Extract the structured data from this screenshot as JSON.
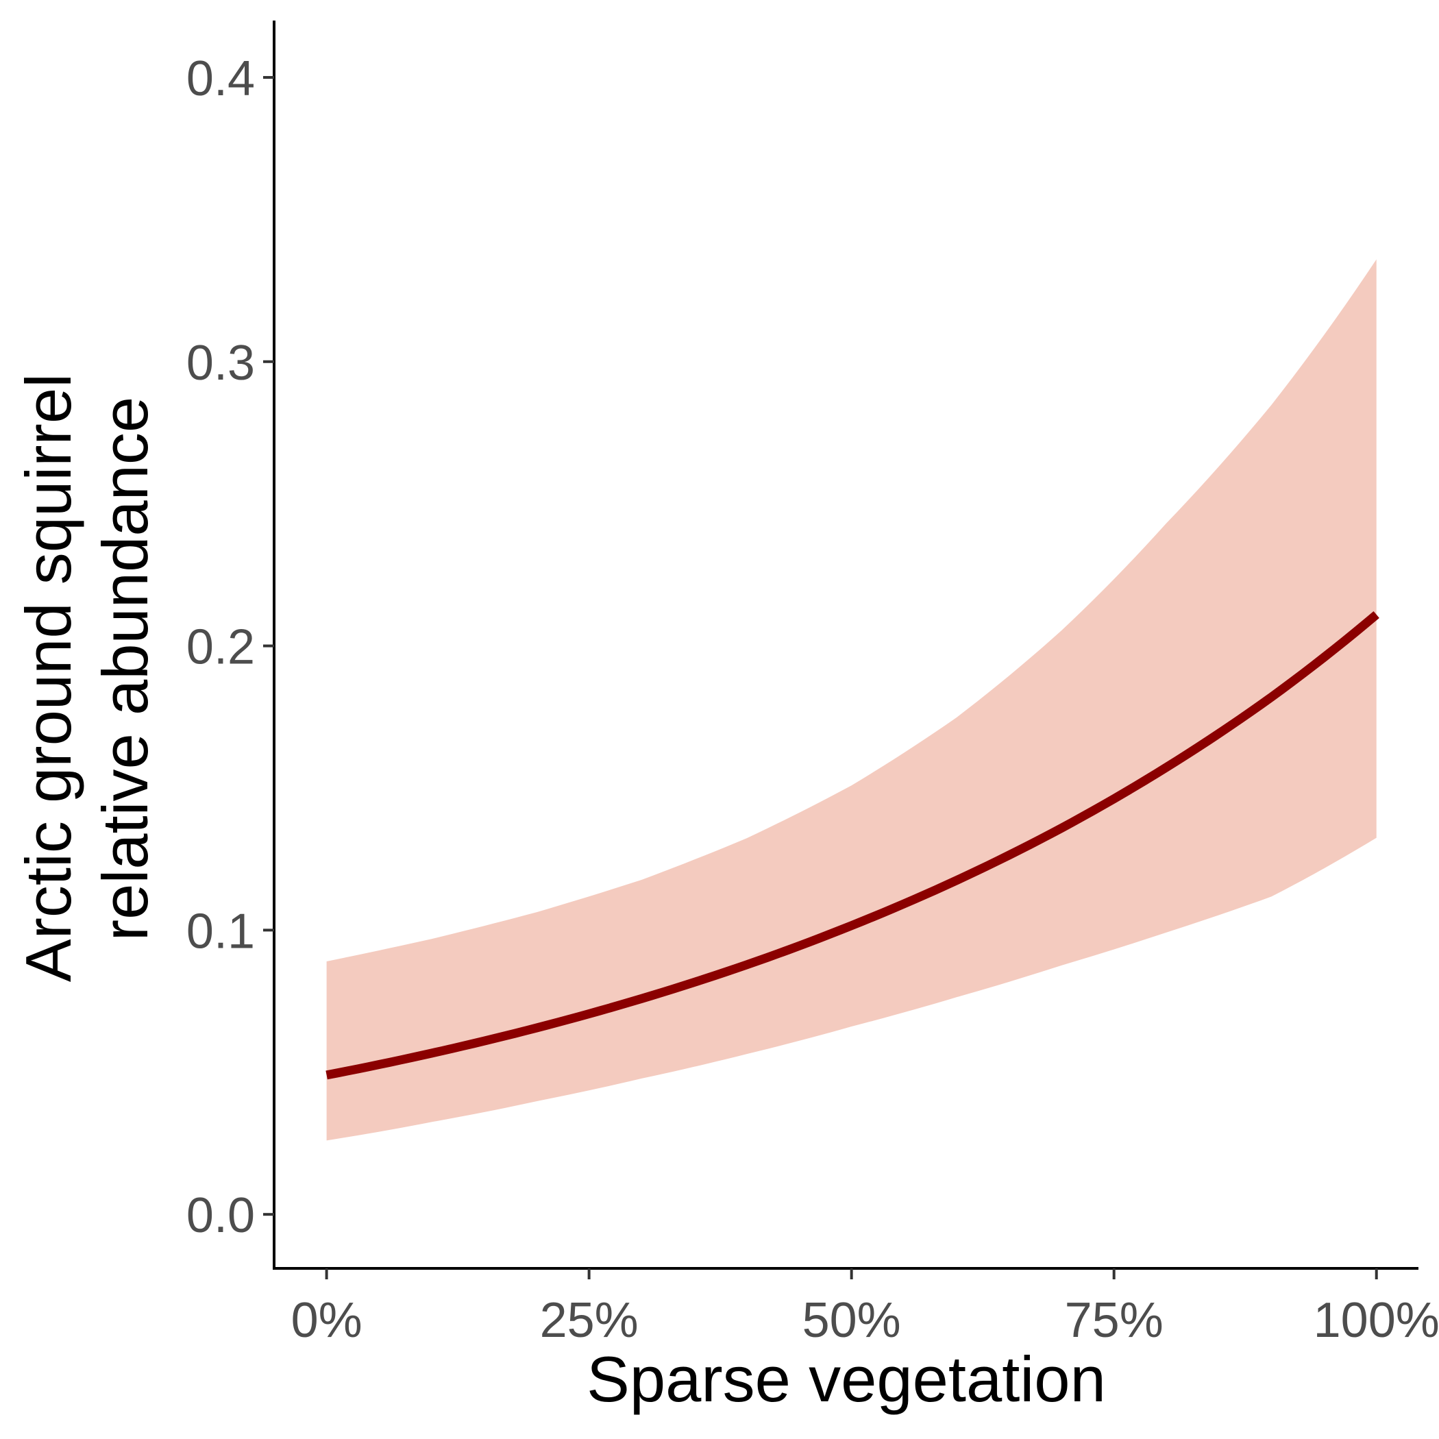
{
  "chart_data": {
    "type": "line",
    "title": "",
    "xlabel": "Sparse vegetation",
    "ylabel_lines": [
      "Arctic ground squirrel",
      "relative abundance"
    ],
    "xlim": [
      -0.05,
      1.04
    ],
    "ylim": [
      -0.019,
      0.42
    ],
    "x_ticks": [
      0,
      0.25,
      0.5,
      0.75,
      1.0
    ],
    "x_tick_labels": [
      "0%",
      "25%",
      "50%",
      "75%",
      "100%"
    ],
    "y_ticks": [
      0.0,
      0.1,
      0.2,
      0.3,
      0.4
    ],
    "y_tick_labels": [
      "0.0",
      "0.1",
      "0.2",
      "0.3",
      "0.4"
    ],
    "grid": false,
    "line_color": "#8b0000",
    "ribbon_color": "#f4cbbf",
    "series": [
      {
        "x": [
          0,
          0.1,
          0.2,
          0.3,
          0.4,
          0.5,
          0.6,
          0.7,
          0.8,
          0.9,
          1.0
        ],
        "y": [
          0.049,
          0.0567,
          0.0656,
          0.0759,
          0.0878,
          0.1016,
          0.1175,
          0.1359,
          0.1573,
          0.182,
          0.211
        ],
        "lower": [
          0.026,
          0.0325,
          0.0398,
          0.0478,
          0.0564,
          0.0661,
          0.0764,
          0.0876,
          0.0992,
          0.1118,
          0.1325
        ],
        "upper": [
          0.089,
          0.0969,
          0.1063,
          0.1177,
          0.1323,
          0.1509,
          0.1748,
          0.2054,
          0.2432,
          0.2848,
          0.336
        ]
      }
    ]
  }
}
